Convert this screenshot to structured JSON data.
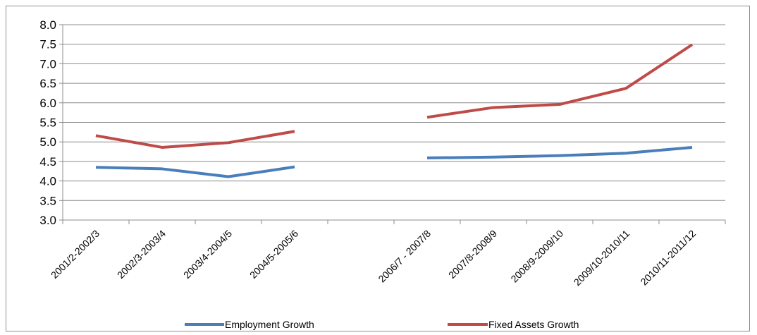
{
  "chart_data": {
    "type": "line",
    "title": "",
    "xlabel": "",
    "ylabel": "",
    "categories": [
      "2001/2-2002/3",
      "2002/3-2003/4",
      "2003/4-2004/5",
      "2004/5-2005/6",
      "",
      "2006/7 - 2007/8",
      "2007/8-2008/9",
      "2008/9-2009/10",
      "2009/10-2010/11",
      "2010/11-2011/12"
    ],
    "ylim": [
      3.0,
      8.0
    ],
    "yticks": [
      "3.0",
      "3.5",
      "4.0",
      "4.5",
      "5.0",
      "5.5",
      "6.0",
      "6.5",
      "7.0",
      "7.5",
      "8.0"
    ],
    "grid": true,
    "legend_position": "bottom",
    "series": [
      {
        "name": "Employment Growth",
        "color": "#4a7ebb",
        "values": [
          4.35,
          4.31,
          4.11,
          4.36,
          null,
          4.59,
          4.61,
          4.65,
          4.71,
          4.86
        ]
      },
      {
        "name": "Fixed Assets Growth",
        "color": "#be4b48",
        "values": [
          5.16,
          4.86,
          4.98,
          5.27,
          null,
          5.63,
          5.88,
          5.96,
          6.37,
          7.49
        ]
      }
    ]
  }
}
